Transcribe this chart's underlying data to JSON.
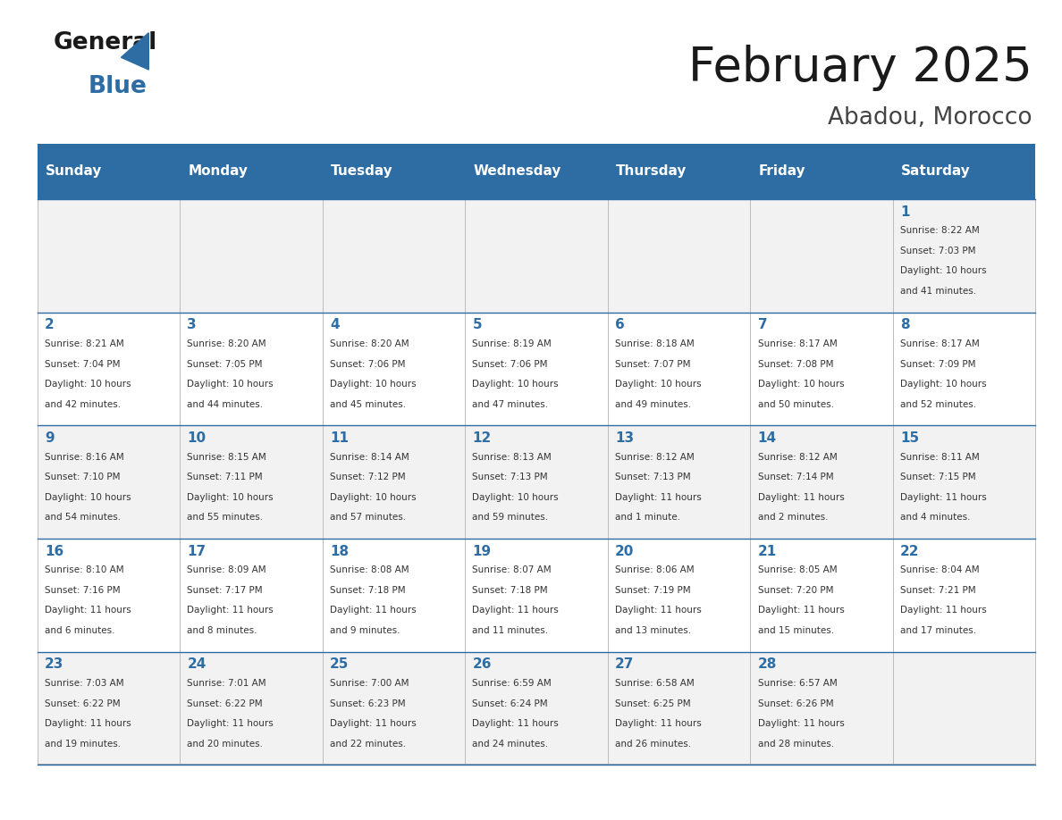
{
  "title": "February 2025",
  "subtitle": "Abadou, Morocco",
  "days_of_week": [
    "Sunday",
    "Monday",
    "Tuesday",
    "Wednesday",
    "Thursday",
    "Friday",
    "Saturday"
  ],
  "header_bg": "#2E6DA4",
  "header_text": "#FFFFFF",
  "cell_bg_odd": "#F2F2F2",
  "cell_bg_even": "#FFFFFF",
  "cell_border": "#CCCCCC",
  "day_number_color": "#2E6DA4",
  "info_text_color": "#333333",
  "title_color": "#1a1a1a",
  "subtitle_color": "#444444",
  "logo_general_color": "#1a1a1a",
  "logo_blue_color": "#2E6DA4",
  "weeks": [
    [
      {
        "day": null,
        "info": ""
      },
      {
        "day": null,
        "info": ""
      },
      {
        "day": null,
        "info": ""
      },
      {
        "day": null,
        "info": ""
      },
      {
        "day": null,
        "info": ""
      },
      {
        "day": null,
        "info": ""
      },
      {
        "day": 1,
        "info": "Sunrise: 8:22 AM\nSunset: 7:03 PM\nDaylight: 10 hours\nand 41 minutes."
      }
    ],
    [
      {
        "day": 2,
        "info": "Sunrise: 8:21 AM\nSunset: 7:04 PM\nDaylight: 10 hours\nand 42 minutes."
      },
      {
        "day": 3,
        "info": "Sunrise: 8:20 AM\nSunset: 7:05 PM\nDaylight: 10 hours\nand 44 minutes."
      },
      {
        "day": 4,
        "info": "Sunrise: 8:20 AM\nSunset: 7:06 PM\nDaylight: 10 hours\nand 45 minutes."
      },
      {
        "day": 5,
        "info": "Sunrise: 8:19 AM\nSunset: 7:06 PM\nDaylight: 10 hours\nand 47 minutes."
      },
      {
        "day": 6,
        "info": "Sunrise: 8:18 AM\nSunset: 7:07 PM\nDaylight: 10 hours\nand 49 minutes."
      },
      {
        "day": 7,
        "info": "Sunrise: 8:17 AM\nSunset: 7:08 PM\nDaylight: 10 hours\nand 50 minutes."
      },
      {
        "day": 8,
        "info": "Sunrise: 8:17 AM\nSunset: 7:09 PM\nDaylight: 10 hours\nand 52 minutes."
      }
    ],
    [
      {
        "day": 9,
        "info": "Sunrise: 8:16 AM\nSunset: 7:10 PM\nDaylight: 10 hours\nand 54 minutes."
      },
      {
        "day": 10,
        "info": "Sunrise: 8:15 AM\nSunset: 7:11 PM\nDaylight: 10 hours\nand 55 minutes."
      },
      {
        "day": 11,
        "info": "Sunrise: 8:14 AM\nSunset: 7:12 PM\nDaylight: 10 hours\nand 57 minutes."
      },
      {
        "day": 12,
        "info": "Sunrise: 8:13 AM\nSunset: 7:13 PM\nDaylight: 10 hours\nand 59 minutes."
      },
      {
        "day": 13,
        "info": "Sunrise: 8:12 AM\nSunset: 7:13 PM\nDaylight: 11 hours\nand 1 minute."
      },
      {
        "day": 14,
        "info": "Sunrise: 8:12 AM\nSunset: 7:14 PM\nDaylight: 11 hours\nand 2 minutes."
      },
      {
        "day": 15,
        "info": "Sunrise: 8:11 AM\nSunset: 7:15 PM\nDaylight: 11 hours\nand 4 minutes."
      }
    ],
    [
      {
        "day": 16,
        "info": "Sunrise: 8:10 AM\nSunset: 7:16 PM\nDaylight: 11 hours\nand 6 minutes."
      },
      {
        "day": 17,
        "info": "Sunrise: 8:09 AM\nSunset: 7:17 PM\nDaylight: 11 hours\nand 8 minutes."
      },
      {
        "day": 18,
        "info": "Sunrise: 8:08 AM\nSunset: 7:18 PM\nDaylight: 11 hours\nand 9 minutes."
      },
      {
        "day": 19,
        "info": "Sunrise: 8:07 AM\nSunset: 7:18 PM\nDaylight: 11 hours\nand 11 minutes."
      },
      {
        "day": 20,
        "info": "Sunrise: 8:06 AM\nSunset: 7:19 PM\nDaylight: 11 hours\nand 13 minutes."
      },
      {
        "day": 21,
        "info": "Sunrise: 8:05 AM\nSunset: 7:20 PM\nDaylight: 11 hours\nand 15 minutes."
      },
      {
        "day": 22,
        "info": "Sunrise: 8:04 AM\nSunset: 7:21 PM\nDaylight: 11 hours\nand 17 minutes."
      }
    ],
    [
      {
        "day": 23,
        "info": "Sunrise: 7:03 AM\nSunset: 6:22 PM\nDaylight: 11 hours\nand 19 minutes."
      },
      {
        "day": 24,
        "info": "Sunrise: 7:01 AM\nSunset: 6:22 PM\nDaylight: 11 hours\nand 20 minutes."
      },
      {
        "day": 25,
        "info": "Sunrise: 7:00 AM\nSunset: 6:23 PM\nDaylight: 11 hours\nand 22 minutes."
      },
      {
        "day": 26,
        "info": "Sunrise: 6:59 AM\nSunset: 6:24 PM\nDaylight: 11 hours\nand 24 minutes."
      },
      {
        "day": 27,
        "info": "Sunrise: 6:58 AM\nSunset: 6:25 PM\nDaylight: 11 hours\nand 26 minutes."
      },
      {
        "day": 28,
        "info": "Sunrise: 6:57 AM\nSunset: 6:26 PM\nDaylight: 11 hours\nand 28 minutes."
      },
      {
        "day": null,
        "info": ""
      }
    ]
  ]
}
